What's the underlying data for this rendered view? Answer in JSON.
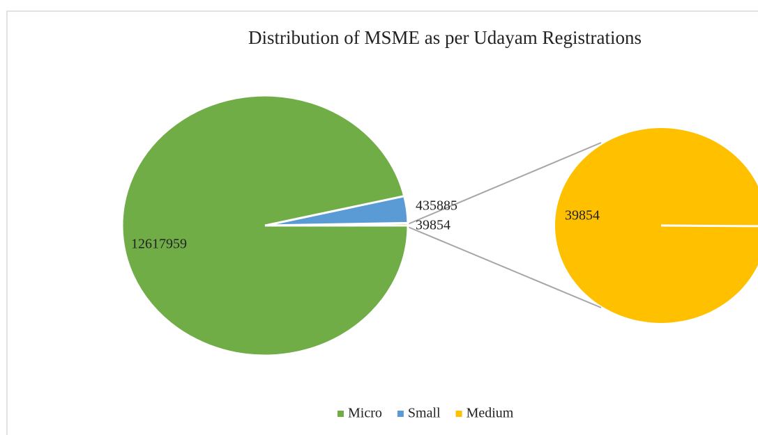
{
  "chart_data": {
    "type": "pie-of-pie",
    "title": "Distribution of MSME as per Udayam Registrations",
    "categories": [
      "Micro",
      "Small",
      "Medium"
    ],
    "values": [
      12617959,
      435885,
      39854
    ],
    "colors": [
      "#70ad47",
      "#5b9bd5",
      "#ffc000"
    ],
    "secondary": [
      2
    ],
    "legend": "bottom"
  }
}
